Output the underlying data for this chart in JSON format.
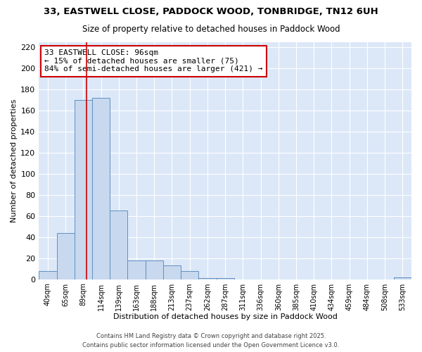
{
  "title": "33, EASTWELL CLOSE, PADDOCK WOOD, TONBRIDGE, TN12 6UH",
  "subtitle": "Size of property relative to detached houses in Paddock Wood",
  "xlabel": "Distribution of detached houses by size in Paddock Wood",
  "ylabel": "Number of detached properties",
  "categories": [
    "40sqm",
    "65sqm",
    "89sqm",
    "114sqm",
    "139sqm",
    "163sqm",
    "188sqm",
    "213sqm",
    "237sqm",
    "262sqm",
    "287sqm",
    "311sqm",
    "336sqm",
    "360sqm",
    "385sqm",
    "410sqm",
    "434sqm",
    "459sqm",
    "484sqm",
    "508sqm",
    "533sqm"
  ],
  "values": [
    8,
    44,
    170,
    172,
    65,
    18,
    18,
    13,
    8,
    1,
    1,
    0,
    0,
    0,
    0,
    0,
    0,
    0,
    0,
    0,
    2
  ],
  "bar_color": "#c8d8ee",
  "bar_edge_color": "#6090c0",
  "red_line_x": 2.2,
  "annotation_line1": "33 EASTWELL CLOSE: 96sqm",
  "annotation_line2": "← 15% of detached houses are smaller (75)",
  "annotation_line3": "84% of semi-detached houses are larger (421) →",
  "annotation_box_color": "#ffffff",
  "annotation_box_edge": "#cc0000",
  "red_line_color": "#cc0000",
  "figure_bg": "#ffffff",
  "plot_bg": "#dce8f8",
  "grid_color": "#ffffff",
  "footer": "Contains HM Land Registry data © Crown copyright and database right 2025.\nContains public sector information licensed under the Open Government Licence v3.0.",
  "ylim": [
    0,
    225
  ],
  "yticks": [
    0,
    20,
    40,
    60,
    80,
    100,
    120,
    140,
    160,
    180,
    200,
    220
  ]
}
